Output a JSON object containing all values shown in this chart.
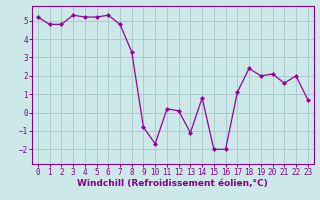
{
  "x": [
    0,
    1,
    2,
    3,
    4,
    5,
    6,
    7,
    8,
    9,
    10,
    11,
    12,
    13,
    14,
    15,
    16,
    17,
    18,
    19,
    20,
    21,
    22,
    23
  ],
  "y": [
    5.2,
    4.8,
    4.8,
    5.3,
    5.2,
    5.2,
    5.3,
    4.8,
    3.3,
    -0.8,
    -1.7,
    0.2,
    0.1,
    -1.1,
    0.8,
    -2.0,
    -2.0,
    1.1,
    2.4,
    2.0,
    2.1,
    1.6,
    2.0,
    0.7
  ],
  "line_color": "#990099",
  "marker": "D",
  "marker_size": 2.0,
  "bg_color": "#cce8e8",
  "grid_color": "#aacccc",
  "xlabel": "Windchill (Refroidissement éolien,°C)",
  "xlim": [
    -0.5,
    23.5
  ],
  "ylim": [
    -2.8,
    5.8
  ],
  "yticks": [
    -2,
    -1,
    0,
    1,
    2,
    3,
    4,
    5
  ],
  "xticks": [
    0,
    1,
    2,
    3,
    4,
    5,
    6,
    7,
    8,
    9,
    10,
    11,
    12,
    13,
    14,
    15,
    16,
    17,
    18,
    19,
    20,
    21,
    22,
    23
  ],
  "tick_color": "#880088",
  "tick_fontsize": 5.5,
  "xlabel_fontsize": 6.5,
  "spine_color": "#880088",
  "linewidth": 0.9
}
